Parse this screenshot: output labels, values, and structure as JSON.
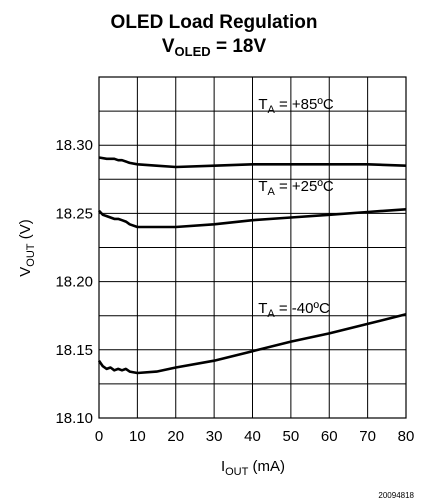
{
  "chart_data": {
    "type": "line",
    "title": {
      "line1": "OLED Load Regulation",
      "line2_main": "V",
      "line2_sub": "OLED",
      "line2_rest": " = 18V"
    },
    "xlabel": {
      "main": "I",
      "sub": "OUT",
      "rest": " (mA)"
    },
    "ylabel": {
      "main": "V",
      "sub": "OUT",
      "rest": " (V)"
    },
    "xlim": [
      0,
      80
    ],
    "ylim": [
      18.1,
      18.35
    ],
    "x_ticks": [
      "0",
      "10",
      "20",
      "30",
      "40",
      "50",
      "60",
      "70",
      "80"
    ],
    "y_ticks": [
      "18.10",
      "18.15",
      "18.20",
      "18.25",
      "18.30"
    ],
    "grid": true,
    "series": [
      {
        "name": {
          "main": "T",
          "sub": "A",
          "rest": " = +85ºC"
        },
        "x": [
          0,
          2,
          4,
          5,
          6,
          8,
          10,
          15,
          20,
          30,
          40,
          50,
          60,
          70,
          80
        ],
        "y": [
          18.291,
          18.29,
          18.29,
          18.289,
          18.289,
          18.287,
          18.286,
          18.285,
          18.284,
          18.285,
          18.286,
          18.286,
          18.286,
          18.286,
          18.285
        ]
      },
      {
        "name": {
          "main": "T",
          "sub": "A",
          "rest": " = +25ºC"
        },
        "x": [
          0,
          1,
          2,
          3,
          4,
          5,
          6,
          7,
          8,
          10,
          15,
          20,
          30,
          40,
          50,
          60,
          70,
          80
        ],
        "y": [
          18.252,
          18.249,
          18.248,
          18.247,
          18.246,
          18.246,
          18.245,
          18.244,
          18.242,
          18.24,
          18.24,
          18.24,
          18.242,
          18.245,
          18.247,
          18.249,
          18.251,
          18.253
        ]
      },
      {
        "name": {
          "main": "T",
          "sub": "A",
          "rest": " = -40ºC"
        },
        "x": [
          0,
          1,
          2,
          3,
          4,
          5,
          6,
          7,
          8,
          10,
          15,
          20,
          30,
          40,
          50,
          60,
          70,
          80
        ],
        "y": [
          18.142,
          18.138,
          18.136,
          18.137,
          18.135,
          18.136,
          18.135,
          18.136,
          18.134,
          18.133,
          18.134,
          18.137,
          18.142,
          18.149,
          18.156,
          18.162,
          18.169,
          18.176
        ]
      }
    ]
  },
  "figure_id": "20094818"
}
